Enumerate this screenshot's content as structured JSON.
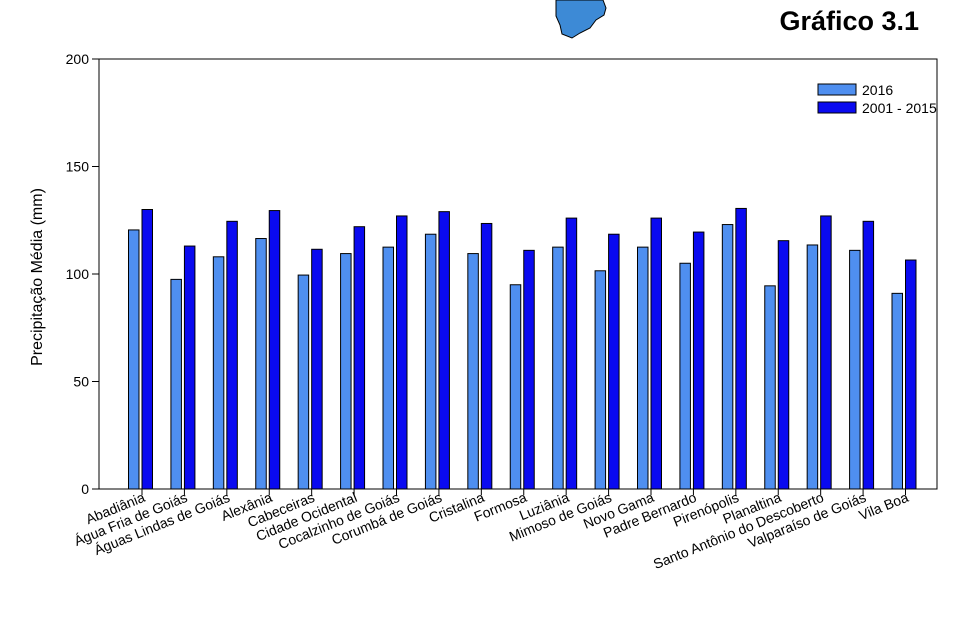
{
  "figure_label": "Gráfico 3.1",
  "chart_data": {
    "type": "bar",
    "title": "",
    "xlabel": "",
    "ylabel": "Precipitação Média (mm)",
    "ylim": [
      0,
      200
    ],
    "yticks": [
      0,
      50,
      100,
      150,
      200
    ],
    "grid": false,
    "legend_position": "top-right",
    "categories": [
      "Abadiânia",
      "Água Fria de Goiás",
      "Águas Lindas de Goiás",
      "Alexânia",
      "Cabeceiras",
      "Cidade Ocidental",
      "Cocalzinho de Goiás",
      "Corumbá de Goiás",
      "Cristalina",
      "Formosa",
      "Luziânia",
      "Mimoso de Goiás",
      "Novo Gama",
      "Padre Bernardo",
      "Pirenópolis",
      "Planaltina",
      "Santo Antônio do Descoberto",
      "Valparaíso de Goiás",
      "Vila Boa"
    ],
    "series": [
      {
        "name": "2016",
        "color": "#4f8ff0",
        "values": [
          120.5,
          97.5,
          108,
          116.5,
          99.5,
          109.5,
          112.5,
          118.5,
          109.5,
          95,
          112.5,
          101.5,
          112.5,
          105,
          123,
          94.5,
          113.5,
          111,
          91
        ]
      },
      {
        "name": "2001 - 2015",
        "color": "#0a0af0",
        "values": [
          130,
          113,
          124.5,
          129.5,
          111.5,
          122,
          127,
          129,
          123.5,
          111,
          126,
          118.5,
          126,
          119.5,
          130.5,
          115.5,
          127,
          124.5,
          106.5
        ]
      }
    ]
  }
}
